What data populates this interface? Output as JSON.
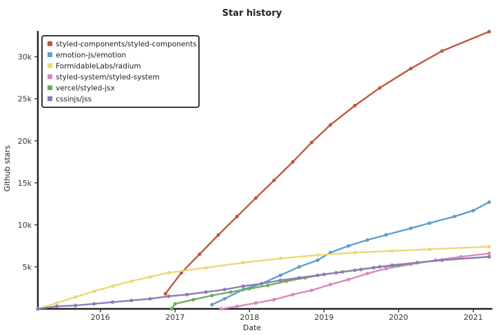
{
  "chart_data": {
    "type": "line",
    "title": "Star history",
    "xlabel": "Date",
    "ylabel": "Github stars",
    "x_type": "date",
    "xlim": [
      "2015-03-01",
      "2021-04-01"
    ],
    "ylim": [
      0,
      33000
    ],
    "x_ticks": [
      {
        "label": "2016",
        "date": "2016-01-01"
      },
      {
        "label": "2017",
        "date": "2017-01-01"
      },
      {
        "label": "2018",
        "date": "2018-01-01"
      },
      {
        "label": "2019",
        "date": "2019-01-01"
      },
      {
        "label": "2020",
        "date": "2020-01-01"
      },
      {
        "label": "2021",
        "date": "2021-01-01"
      }
    ],
    "y_ticks": [
      {
        "label": "5k",
        "value": 5000
      },
      {
        "label": "10k",
        "value": 10000
      },
      {
        "label": "15k",
        "value": 15000
      },
      {
        "label": "20k",
        "value": 20000
      },
      {
        "label": "25k",
        "value": 25000
      },
      {
        "label": "30k",
        "value": 30000
      }
    ],
    "grid": false,
    "legend_position": "top-left",
    "series": [
      {
        "name": "styled-components/styled-components",
        "color": "#c0583c",
        "points": [
          [
            "2016-11-15",
            1800
          ],
          [
            "2017-02-01",
            4300
          ],
          [
            "2017-05-01",
            6500
          ],
          [
            "2017-08-01",
            8800
          ],
          [
            "2017-11-01",
            11000
          ],
          [
            "2018-02-01",
            13200
          ],
          [
            "2018-05-01",
            15300
          ],
          [
            "2018-08-01",
            17500
          ],
          [
            "2018-11-01",
            19800
          ],
          [
            "2019-02-01",
            21900
          ],
          [
            "2019-06-01",
            24200
          ],
          [
            "2019-10-01",
            26300
          ],
          [
            "2020-03-01",
            28600
          ],
          [
            "2020-08-01",
            30700
          ],
          [
            "2021-03-20",
            33000
          ]
        ]
      },
      {
        "name": "emotion-js/emotion",
        "color": "#5d9ecf",
        "points": [
          [
            "2017-07-01",
            500
          ],
          [
            "2017-09-01",
            1200
          ],
          [
            "2017-12-01",
            2300
          ],
          [
            "2018-03-01",
            3000
          ],
          [
            "2018-06-01",
            4000
          ],
          [
            "2018-09-01",
            5000
          ],
          [
            "2018-12-01",
            5800
          ],
          [
            "2019-02-01",
            6700
          ],
          [
            "2019-05-01",
            7500
          ],
          [
            "2019-08-01",
            8200
          ],
          [
            "2019-11-01",
            8800
          ],
          [
            "2020-03-01",
            9600
          ],
          [
            "2020-06-01",
            10200
          ],
          [
            "2020-10-01",
            11000
          ],
          [
            "2021-01-01",
            11700
          ],
          [
            "2021-03-20",
            12700
          ]
        ]
      },
      {
        "name": "FormidableLabs/radium",
        "color": "#ecd878",
        "points": [
          [
            "2015-03-01",
            0
          ],
          [
            "2015-06-01",
            700
          ],
          [
            "2015-09-01",
            1400
          ],
          [
            "2015-12-01",
            2100
          ],
          [
            "2016-03-01",
            2700
          ],
          [
            "2016-06-01",
            3300
          ],
          [
            "2016-09-01",
            3800
          ],
          [
            "2016-12-01",
            4300
          ],
          [
            "2017-06-01",
            4900
          ],
          [
            "2017-12-01",
            5500
          ],
          [
            "2018-06-01",
            6000
          ],
          [
            "2018-12-01",
            6400
          ],
          [
            "2019-06-01",
            6700
          ],
          [
            "2019-12-01",
            6900
          ],
          [
            "2020-06-01",
            7100
          ],
          [
            "2021-03-20",
            7400
          ]
        ]
      },
      {
        "name": "styled-system/styled-system",
        "color": "#d68ab8",
        "points": [
          [
            "2017-08-15",
            0
          ],
          [
            "2017-11-01",
            300
          ],
          [
            "2018-02-01",
            700
          ],
          [
            "2018-05-01",
            1100
          ],
          [
            "2018-08-01",
            1700
          ],
          [
            "2018-11-01",
            2200
          ],
          [
            "2019-02-01",
            2900
          ],
          [
            "2019-05-01",
            3500
          ],
          [
            "2019-08-01",
            4200
          ],
          [
            "2019-11-01",
            4800
          ],
          [
            "2020-03-01",
            5300
          ],
          [
            "2020-07-01",
            5800
          ],
          [
            "2020-11-01",
            6200
          ],
          [
            "2021-03-20",
            6600
          ]
        ]
      },
      {
        "name": "vercel/styled-jsx",
        "color": "#6dac5c",
        "points": [
          [
            "2016-12-15",
            0
          ],
          [
            "2017-01-01",
            600
          ],
          [
            "2017-04-01",
            1100
          ],
          [
            "2017-07-01",
            1600
          ],
          [
            "2017-10-01",
            2000
          ],
          [
            "2018-01-01",
            2400
          ],
          [
            "2018-04-01",
            2800
          ],
          [
            "2018-07-01",
            3300
          ],
          [
            "2018-10-01",
            3700
          ],
          [
            "2019-01-01",
            4100
          ],
          [
            "2019-04-01",
            4400
          ],
          [
            "2019-07-01",
            4700
          ],
          [
            "2019-10-01",
            5000
          ],
          [
            "2020-01-01",
            5200
          ],
          [
            "2020-04-01",
            5500
          ],
          [
            "2020-08-01",
            5800
          ],
          [
            "2021-03-20",
            6200
          ]
        ]
      },
      {
        "name": "cssinjs/jss",
        "color": "#8c7bba",
        "points": [
          [
            "2015-03-01",
            0
          ],
          [
            "2015-06-01",
            300
          ],
          [
            "2015-09-01",
            400
          ],
          [
            "2015-12-01",
            600
          ],
          [
            "2016-03-01",
            800
          ],
          [
            "2016-06-01",
            1000
          ],
          [
            "2016-09-01",
            1200
          ],
          [
            "2016-12-01",
            1500
          ],
          [
            "2017-03-01",
            1700
          ],
          [
            "2017-06-01",
            2000
          ],
          [
            "2017-09-01",
            2300
          ],
          [
            "2017-12-01",
            2700
          ],
          [
            "2018-03-01",
            3000
          ],
          [
            "2018-06-01",
            3400
          ],
          [
            "2018-09-01",
            3700
          ],
          [
            "2018-12-01",
            4000
          ],
          [
            "2019-03-01",
            4300
          ],
          [
            "2019-06-01",
            4600
          ],
          [
            "2019-09-01",
            4900
          ],
          [
            "2019-12-01",
            5200
          ],
          [
            "2020-04-01",
            5500
          ],
          [
            "2020-08-01",
            5800
          ],
          [
            "2021-03-20",
            6200
          ]
        ]
      }
    ]
  }
}
